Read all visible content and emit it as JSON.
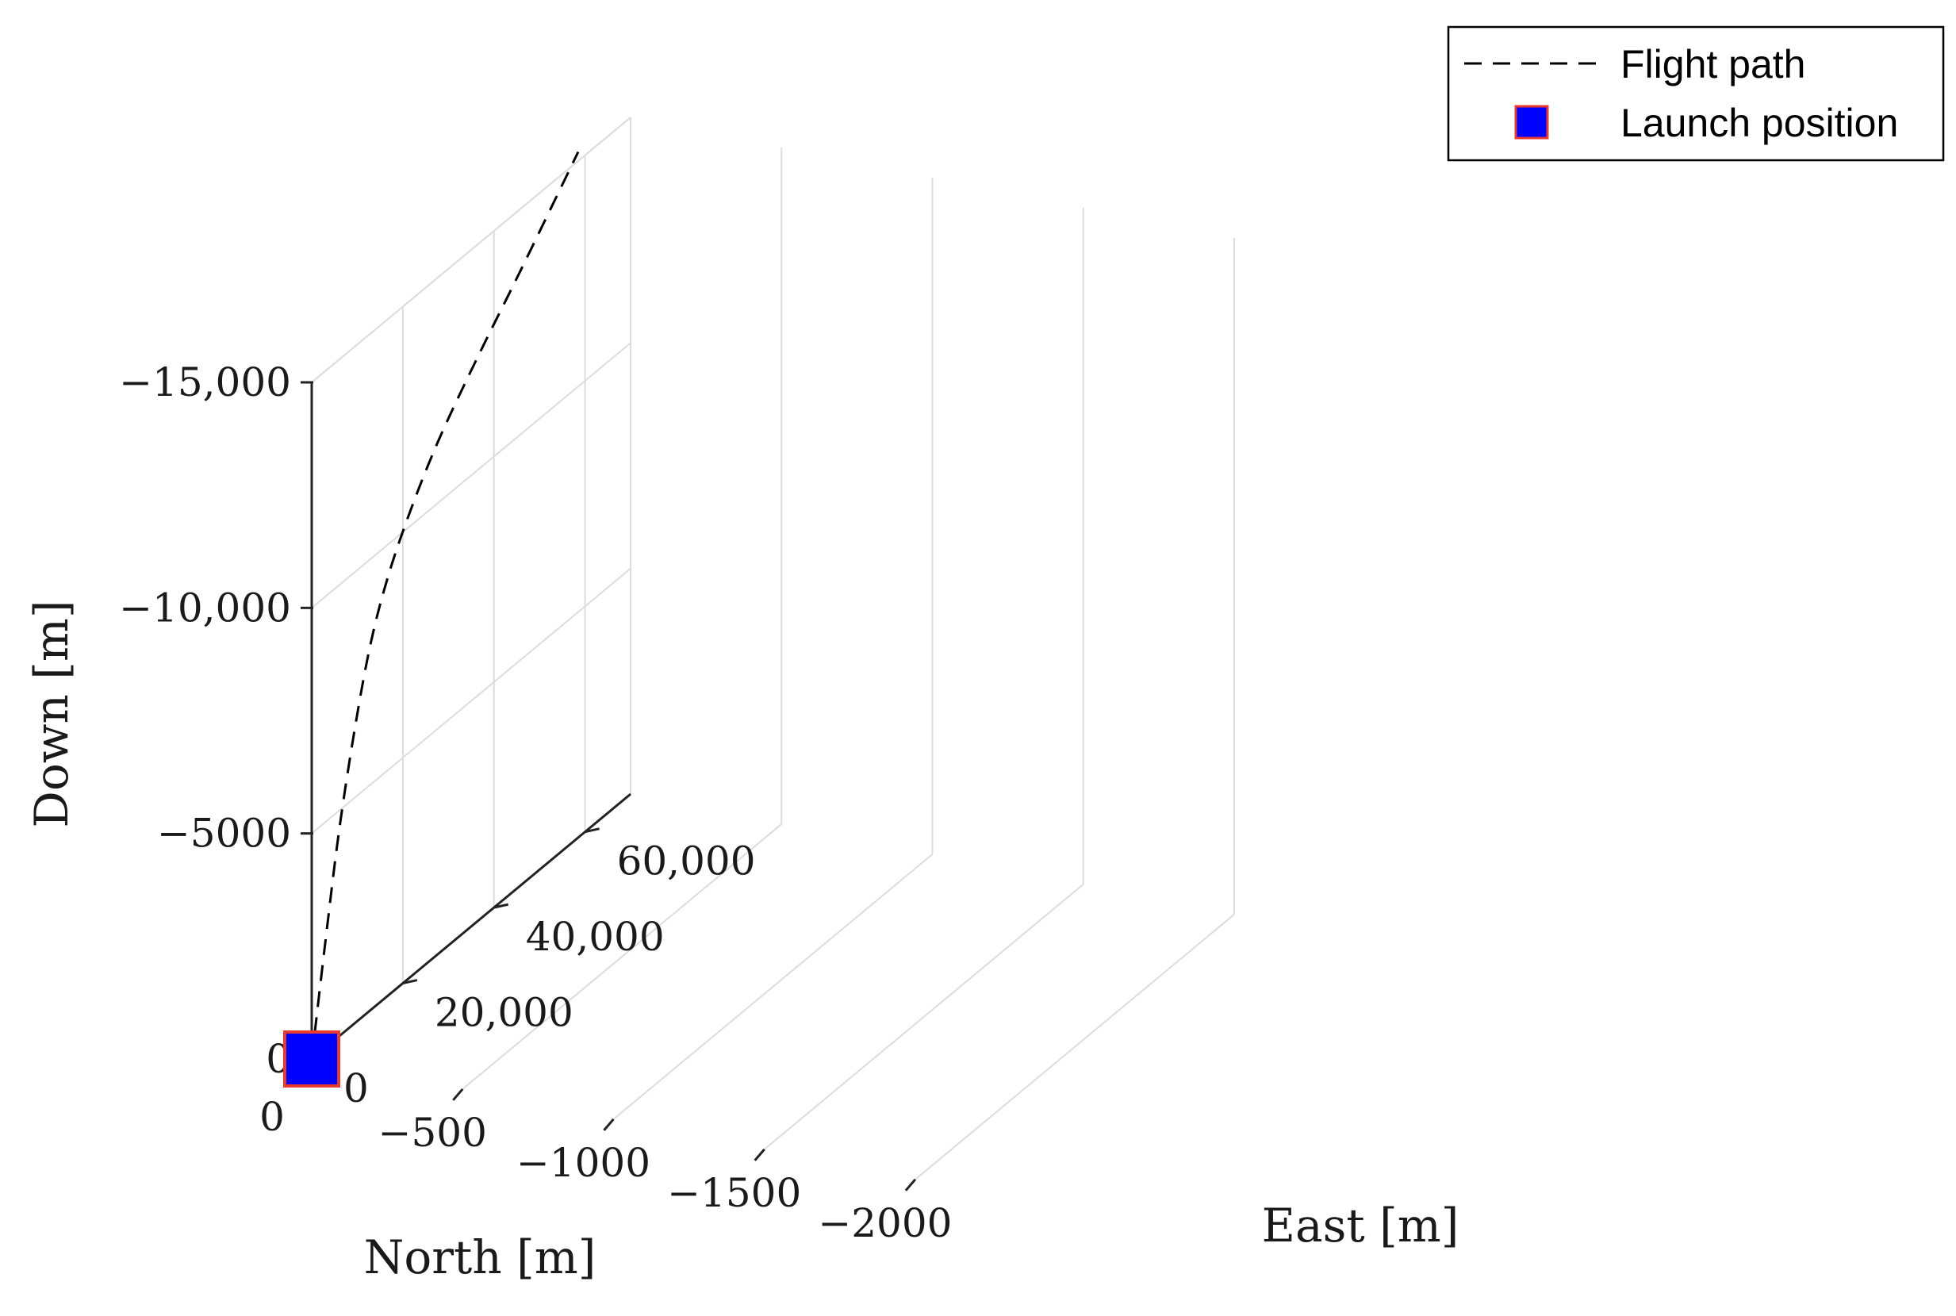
{
  "chart_data": {
    "type": "line3d",
    "xlabel": "North [m]",
    "ylabel": "East [m]",
    "zlabel": "Down [m]",
    "axes": {
      "north": {
        "lim": [
          -2200,
          0
        ],
        "ticks": [
          0,
          -500,
          -1000,
          -1500,
          -2000
        ],
        "tick_labels": [
          "0",
          "−500",
          "−1000",
          "−1500",
          "−2000"
        ]
      },
      "east": {
        "lim": [
          0,
          70000
        ],
        "ticks": [
          0,
          20000,
          40000,
          60000
        ],
        "tick_labels": [
          "0",
          "20,000",
          "40,000",
          "60,000"
        ]
      },
      "down": {
        "lim": [
          -15000,
          0
        ],
        "ticks": [
          0,
          -5000,
          -10000,
          -15000
        ],
        "tick_labels": [
          "0",
          "−5000",
          "−10,000",
          "−15,000"
        ]
      }
    },
    "grid": true,
    "legend_position": "top-right",
    "series": [
      {
        "name": "Flight path",
        "style": "dashed",
        "color": "#000000",
        "north": [
          0,
          0,
          0,
          0,
          0,
          0,
          0,
          0,
          0,
          0,
          0
        ],
        "east": [
          0,
          3000,
          6000,
          9500,
          13000,
          17000,
          22000,
          28000,
          36000,
          46000,
          58500
        ],
        "down": [
          0,
          -2350,
          -4550,
          -6550,
          -8150,
          -9350,
          -10400,
          -11400,
          -12450,
          -13650,
          -15200
        ]
      },
      {
        "name": "Launch position",
        "style": "marker-square",
        "color": "#0000ff",
        "edge_color": "#e83a2f",
        "north": [
          0
        ],
        "east": [
          0
        ],
        "down": [
          0
        ]
      }
    ]
  }
}
